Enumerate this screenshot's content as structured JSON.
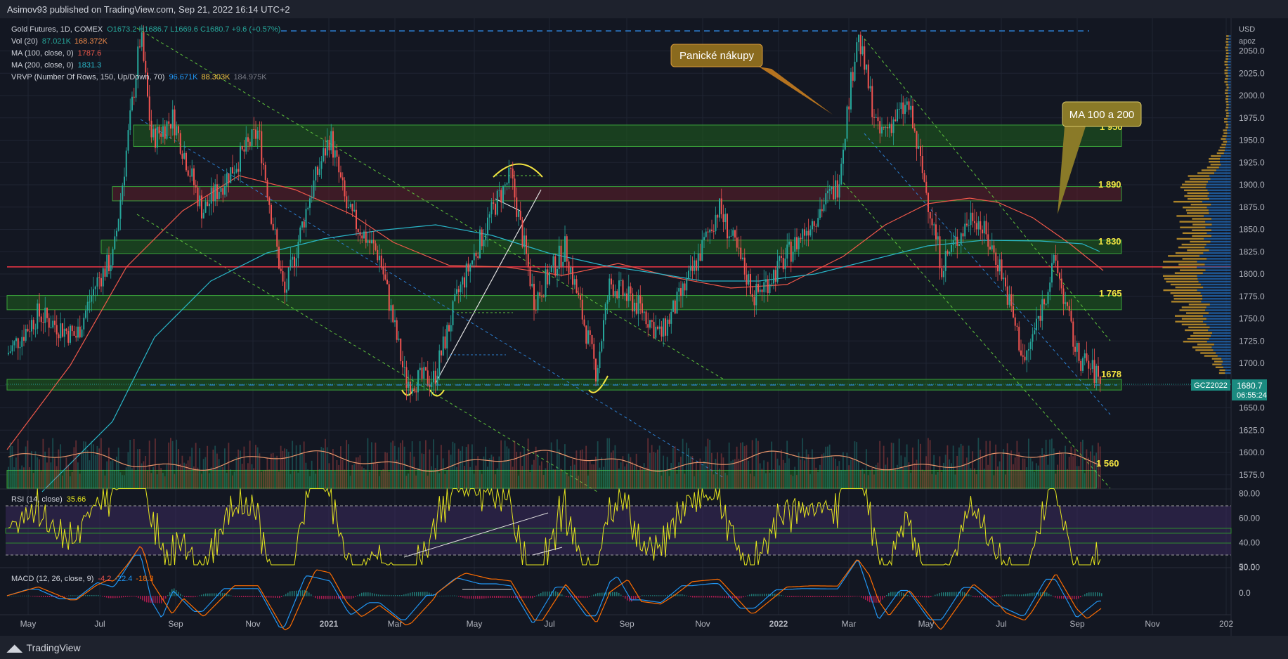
{
  "header": {
    "publish_line": "Asimov93 published on TradingView.com, Sep 21, 2022 16:14 UTC+2"
  },
  "footer": {
    "brand": "TradingView"
  },
  "legend": {
    "symbol": "Gold Futures, 1D, COMEX",
    "ohlc": "O1673.2 H1686.7 L1669.6 C1680.7 +9.6 (+0.57%)",
    "vol_label": "Vol (20)",
    "vol_a": "87.021K",
    "vol_b": "168.372K",
    "ma100_label": "MA (100, close, 0)",
    "ma100_value": "1787.6",
    "ma200_label": "MA (200, close, 0)",
    "ma200_value": "1831.3",
    "vrvp_label": "VRVP (Number Of Rows, 150, Up/Down, 70)",
    "vrvp_up": "96.671K",
    "vrvp_down": "88.303K",
    "vrvp_total": "184.975K",
    "rsi_label": "RSI (14, close)",
    "rsi_value": "35.66",
    "macd_label": "MACD (12, 26, close, 9)",
    "macd_hist": "-4.2",
    "macd_line": "-22.4",
    "macd_signal": "-18.3"
  },
  "price_axis": {
    "currency": "USD",
    "scale": "apoz",
    "ticks": [
      "2050.0",
      "2025.0",
      "2000.0",
      "1975.0",
      "1950.0",
      "1925.0",
      "1900.0",
      "1875.0",
      "1850.0",
      "1825.0",
      "1800.0",
      "1775.0",
      "1750.0",
      "1725.0",
      "1700.0",
      "1675.0",
      "1650.0",
      "1625.0",
      "1600.0",
      "1575.0"
    ]
  },
  "rsi_axis": {
    "ticks": [
      "80.00",
      "60.00",
      "40.00",
      "20.00"
    ]
  },
  "macd_axis": {
    "ticks": [
      "50.0",
      "0.0"
    ]
  },
  "time_axis": {
    "labels": [
      "May",
      "Jul",
      "Sep",
      "Nov",
      "2021",
      "Mar",
      "May",
      "Jul",
      "Sep",
      "Nov",
      "2022",
      "Mar",
      "May",
      "Jul",
      "Sep",
      "Nov",
      "202"
    ]
  },
  "price_tag": {
    "symbol": "GCZ2022",
    "price": "1680.7",
    "countdown": "06:55:24"
  },
  "annotations": {
    "panic": "Panické nákupy",
    "ma": "MA 100 a 200"
  },
  "levels": [
    "1 950",
    "1 890",
    "1 830",
    "1 765",
    "1678",
    "1 560"
  ],
  "colors": {
    "bg": "#131722",
    "up": "#26a69a",
    "down": "#ef5350",
    "ma100": "#f0584a",
    "ma200": "#29b6c8",
    "zone": "#2e8b2e",
    "rsi": "#e6e61e",
    "macd": "#2196f3",
    "signal": "#ff6d00",
    "level_text": "#f5e642"
  },
  "chart_data": {
    "type": "candlestick",
    "title": "Gold Futures, 1D, COMEX",
    "x_range": [
      "2020-04-20",
      "2022-09-21"
    ],
    "ylim": [
      1560,
      2090
    ],
    "support_resistance_zones": [
      {
        "label": "1 950",
        "low": 1943,
        "high": 1967
      },
      {
        "label": "1 890",
        "low": 1882,
        "high": 1898
      },
      {
        "label": "1 830",
        "low": 1823,
        "high": 1838
      },
      {
        "label": "1 765",
        "low": 1760,
        "high": 1776
      },
      {
        "label": "1678",
        "low": 1670,
        "high": 1682
      },
      {
        "label": "1 560",
        "low": 1560,
        "high": 1580
      }
    ],
    "horizontal_lines": [
      {
        "value": 1808,
        "color": "red"
      },
      {
        "value": 2078,
        "style": "dashed",
        "color": "blue"
      },
      {
        "value": 1680.7,
        "style": "dashed",
        "color": "blue"
      }
    ],
    "close_approx": [
      {
        "x": "2020-04-20",
        "y": 1710
      },
      {
        "x": "2020-05-15",
        "y": 1755
      },
      {
        "x": "2020-06-15",
        "y": 1730
      },
      {
        "x": "2020-07-01",
        "y": 1790
      },
      {
        "x": "2020-07-15",
        "y": 1820
      },
      {
        "x": "2020-08-06",
        "y": 2069
      },
      {
        "x": "2020-08-15",
        "y": 1950
      },
      {
        "x": "2020-09-01",
        "y": 1975
      },
      {
        "x": "2020-09-25",
        "y": 1870
      },
      {
        "x": "2020-10-15",
        "y": 1910
      },
      {
        "x": "2020-11-09",
        "y": 1960
      },
      {
        "x": "2020-11-30",
        "y": 1775
      },
      {
        "x": "2020-12-20",
        "y": 1885
      },
      {
        "x": "2021-01-06",
        "y": 1955
      },
      {
        "x": "2021-01-20",
        "y": 1870
      },
      {
        "x": "2021-02-15",
        "y": 1820
      },
      {
        "x": "2021-03-08",
        "y": 1680
      },
      {
        "x": "2021-03-31",
        "y": 1683
      },
      {
        "x": "2021-04-20",
        "y": 1780
      },
      {
        "x": "2021-05-20",
        "y": 1880
      },
      {
        "x": "2021-06-01",
        "y": 1910
      },
      {
        "x": "2021-06-20",
        "y": 1770
      },
      {
        "x": "2021-07-15",
        "y": 1830
      },
      {
        "x": "2021-08-09",
        "y": 1690
      },
      {
        "x": "2021-08-20",
        "y": 1790
      },
      {
        "x": "2021-09-15",
        "y": 1760
      },
      {
        "x": "2021-09-30",
        "y": 1730
      },
      {
        "x": "2021-10-25",
        "y": 1800
      },
      {
        "x": "2021-11-16",
        "y": 1875
      },
      {
        "x": "2021-12-15",
        "y": 1775
      },
      {
        "x": "2022-01-05",
        "y": 1810
      },
      {
        "x": "2022-01-25",
        "y": 1850
      },
      {
        "x": "2022-02-20",
        "y": 1900
      },
      {
        "x": "2022-03-08",
        "y": 2070
      },
      {
        "x": "2022-03-25",
        "y": 1955
      },
      {
        "x": "2022-04-18",
        "y": 1990
      },
      {
        "x": "2022-05-15",
        "y": 1810
      },
      {
        "x": "2022-06-10",
        "y": 1870
      },
      {
        "x": "2022-07-01",
        "y": 1810
      },
      {
        "x": "2022-07-21",
        "y": 1700
      },
      {
        "x": "2022-08-15",
        "y": 1815
      },
      {
        "x": "2022-09-01",
        "y": 1710
      },
      {
        "x": "2022-09-21",
        "y": 1680.7
      }
    ],
    "rsi": {
      "label": "RSI (14, close)",
      "last": 35.66,
      "ylim": [
        20,
        85
      ],
      "bands": [
        30,
        70
      ]
    },
    "macd": {
      "label": "MACD (12, 26, close, 9)",
      "histogram": -4.2,
      "macd": -22.4,
      "signal": -18.3
    }
  }
}
